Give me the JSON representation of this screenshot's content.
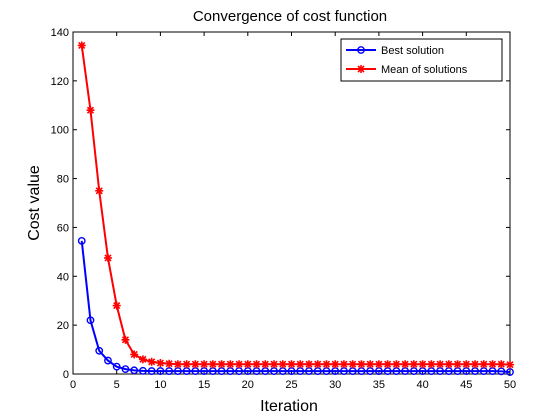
{
  "chart_data": {
    "type": "line",
    "title": "Convergence of cost function",
    "xlabel": "Iteration",
    "ylabel": "Cost value",
    "xlim": [
      0,
      50
    ],
    "ylim": [
      0,
      140
    ],
    "xticks": [
      0,
      5,
      10,
      15,
      20,
      25,
      30,
      35,
      40,
      45,
      50
    ],
    "yticks": [
      0,
      20,
      40,
      60,
      80,
      100,
      120,
      140
    ],
    "grid": false,
    "legend_position": "top-right",
    "x": [
      1,
      2,
      3,
      4,
      5,
      6,
      7,
      8,
      9,
      10,
      11,
      12,
      13,
      14,
      15,
      16,
      17,
      18,
      19,
      20,
      21,
      22,
      23,
      24,
      25,
      26,
      27,
      28,
      29,
      30,
      31,
      32,
      33,
      34,
      35,
      36,
      37,
      38,
      39,
      40,
      41,
      42,
      43,
      44,
      45,
      46,
      47,
      48,
      49,
      50
    ],
    "series": [
      {
        "name": "Best solution",
        "color": "#0000ff",
        "marker": "circle",
        "values": [
          54.5,
          22,
          9.5,
          5.5,
          3,
          2,
          1.5,
          1.3,
          1.2,
          1.2,
          1.2,
          1.2,
          1.2,
          1.2,
          1.2,
          1.2,
          1.2,
          1.2,
          1.2,
          1.2,
          1.2,
          1.2,
          1.2,
          1.2,
          1.2,
          1.2,
          1.2,
          1.2,
          1.2,
          1.2,
          1.2,
          1.2,
          1.2,
          1.2,
          1.2,
          1.2,
          1.2,
          1.2,
          1.2,
          1.2,
          1.2,
          1.2,
          1.2,
          1.2,
          1.2,
          1.2,
          1.2,
          1.2,
          1.1,
          0.8
        ]
      },
      {
        "name": "Mean of solutions",
        "color": "#ff0000",
        "marker": "star",
        "values": [
          134.5,
          108,
          75,
          47.5,
          28,
          14,
          8,
          6,
          5,
          4.5,
          4.2,
          4,
          4,
          4,
          4,
          4,
          4,
          4,
          4,
          4,
          4,
          4,
          4,
          4,
          4,
          4,
          4,
          4,
          4,
          4,
          4,
          4,
          4,
          4,
          4,
          4,
          4,
          4,
          4,
          4,
          4,
          4,
          4,
          4,
          4,
          4,
          4,
          4,
          4,
          3.8
        ]
      }
    ]
  }
}
